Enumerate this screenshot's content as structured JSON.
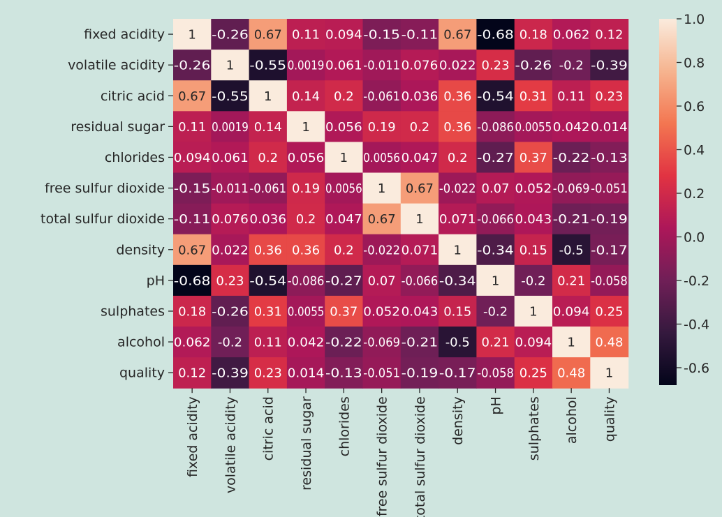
{
  "chart_data": {
    "type": "heatmap",
    "title": "",
    "labels": [
      "fixed acidity",
      "volatile acidity",
      "citric acid",
      "residual sugar",
      "chlorides",
      "free sulfur dioxide",
      "total sulfur dioxide",
      "density",
      "pH",
      "sulphates",
      "alcohol",
      "quality"
    ],
    "cell_text": [
      [
        "1",
        "-0.26",
        "0.67",
        "0.11",
        "0.094",
        "-0.15",
        "-0.11",
        "0.67",
        "-0.68",
        "0.18",
        "0.062",
        "0.12"
      ],
      [
        "-0.26",
        "1",
        "-0.55",
        "0.0019",
        "0.061",
        "-0.011",
        "0.076",
        "0.022",
        "0.23",
        "-0.26",
        "-0.2",
        "-0.39"
      ],
      [
        "0.67",
        "-0.55",
        "1",
        "0.14",
        "0.2",
        "-0.061",
        "0.036",
        "0.36",
        "-0.54",
        "0.31",
        "0.11",
        "0.23"
      ],
      [
        "0.11",
        "0.0019",
        "0.14",
        "1",
        "0.056",
        "0.19",
        "0.2",
        "0.36",
        "-0.086",
        "0.0055",
        "0.042",
        "0.014"
      ],
      [
        "0.094",
        "0.061",
        "0.2",
        "0.056",
        "1",
        "0.0056",
        "0.047",
        "0.2",
        "-0.27",
        "0.37",
        "-0.22",
        "-0.13"
      ],
      [
        "-0.15",
        "-0.011",
        "-0.061",
        "0.19",
        "0.0056",
        "1",
        "0.67",
        "-0.022",
        "0.07",
        "0.052",
        "-0.069",
        "-0.051"
      ],
      [
        "-0.11",
        "0.076",
        "0.036",
        "0.2",
        "0.047",
        "0.67",
        "1",
        "0.071",
        "-0.066",
        "0.043",
        "-0.21",
        "-0.19"
      ],
      [
        "0.67",
        "0.022",
        "0.36",
        "0.36",
        "0.2",
        "-0.022",
        "0.071",
        "1",
        "-0.34",
        "0.15",
        "-0.5",
        "-0.17"
      ],
      [
        "-0.68",
        "0.23",
        "-0.54",
        "-0.086",
        "-0.27",
        "0.07",
        "-0.066",
        "-0.34",
        "1",
        "-0.2",
        "0.21",
        "-0.058"
      ],
      [
        "0.18",
        "-0.26",
        "0.31",
        "0.0055",
        "0.37",
        "0.052",
        "0.043",
        "0.15",
        "-0.2",
        "1",
        "0.094",
        "0.25"
      ],
      [
        "0.062",
        "-0.2",
        "0.11",
        "0.042",
        "-0.22",
        "-0.069",
        "-0.21",
        "-0.5",
        "0.21",
        "0.094",
        "1",
        "0.48"
      ],
      [
        "0.12",
        "-0.39",
        "0.23",
        "0.014",
        "-0.13",
        "-0.051",
        "-0.19",
        "-0.17",
        "-0.058",
        "0.25",
        "0.48",
        "1"
      ]
    ],
    "colorbar": {
      "range": [
        -0.68,
        1.0
      ],
      "ticks": [
        1.0,
        0.8,
        0.6,
        0.4,
        0.2,
        0.0,
        -0.2,
        -0.4,
        -0.6
      ],
      "tick_labels": [
        "1.0",
        "0.8",
        "0.6",
        "0.4",
        "0.2",
        "0.0",
        "-0.2",
        "-0.4",
        "-0.6"
      ]
    },
    "colormap": "rocket",
    "colormap_stops": [
      "#03051a",
      "#35193e",
      "#701f57",
      "#ad1759",
      "#e13342",
      "#f37651",
      "#f6b48f",
      "#faebdd"
    ],
    "background": "#cfe5df",
    "grid": false
  }
}
